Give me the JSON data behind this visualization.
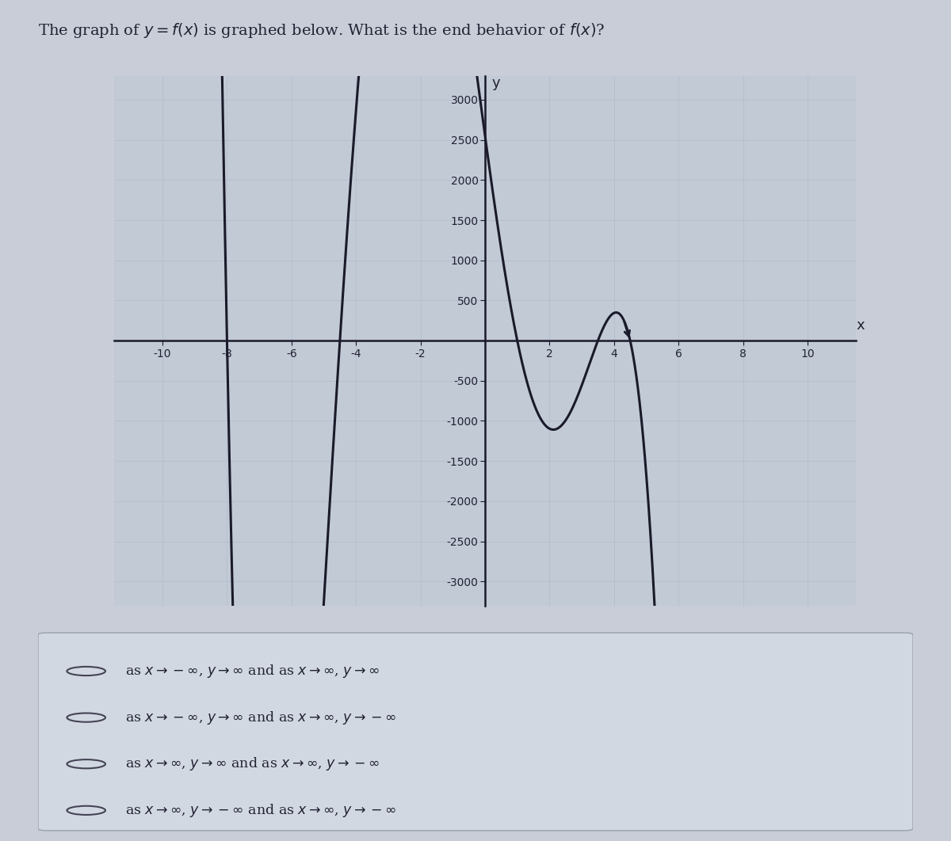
{
  "title_plain": "The graph of y = f(x) is graphed below. What is the end behavior of f(x)?",
  "title_math": "The graph of $y = f(x)$ is graphed below. What is the end behavior of $f(x)$?",
  "xlim": [
    -11.5,
    11.5
  ],
  "ylim": [
    -3300,
    3300
  ],
  "xticks": [
    -10,
    -8,
    -6,
    -4,
    -2,
    2,
    4,
    6,
    8,
    10
  ],
  "yticks": [
    -3000,
    -2500,
    -2000,
    -1500,
    -1000,
    -500,
    500,
    1000,
    1500,
    2000,
    2500,
    3000
  ],
  "xlabel": "x",
  "ylabel": "y",
  "bg_color": "#c8cdd8",
  "plot_bg_color": "#c2cad6",
  "curve_color": "#1a1a2a",
  "axis_color": "#1a1a2a",
  "grid_color": "#b0b8c6",
  "tick_fontsize": 10,
  "label_fontsize": 12,
  "font_color": "#222233",
  "poly_scale": 1.0,
  "option_line1": "as $x \\rightarrow -\\infty$, $y \\rightarrow \\infty$ and as $x \\rightarrow \\infty$, $y \\rightarrow \\infty$",
  "option_line2": "as $x \\rightarrow -\\infty$, $y \\rightarrow \\infty$ and as $x \\rightarrow \\infty$, $y \\rightarrow -\\infty$",
  "option_line3": "as $x \\rightarrow \\infty$, $y \\rightarrow \\infty$ and as $x \\rightarrow \\infty$, $y \\rightarrow -\\infty$",
  "option_line4": "as $x \\rightarrow \\infty$, $y \\rightarrow -\\infty$ and as $x \\rightarrow \\infty$, $y \\rightarrow -\\infty$"
}
